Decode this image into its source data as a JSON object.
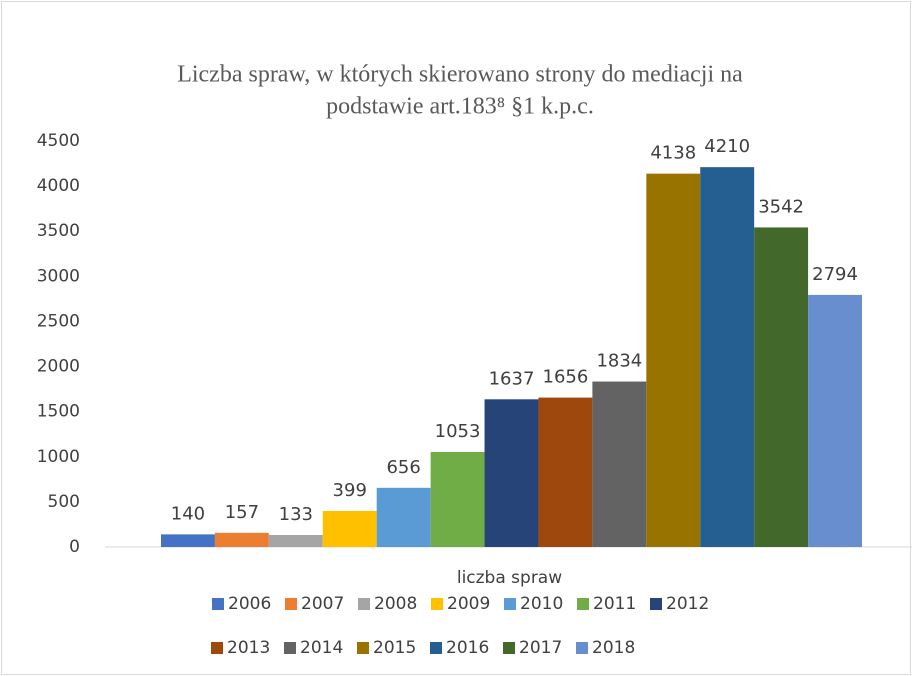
{
  "chart_data": {
    "type": "bar",
    "title": [
      "Liczba spraw, w których skierowano strony do mediacji na",
      "podstawie art.183⁸ §1 k.p.c."
    ],
    "categories": [
      "liczba spraw"
    ],
    "series": [
      {
        "name": "2006",
        "color": "#4472c4",
        "values": [
          140
        ]
      },
      {
        "name": "2007",
        "color": "#ed7d31",
        "values": [
          157
        ]
      },
      {
        "name": "2008",
        "color": "#a5a5a5",
        "values": [
          133
        ]
      },
      {
        "name": "2009",
        "color": "#ffc000",
        "values": [
          399
        ]
      },
      {
        "name": "2010",
        "color": "#5b9bd5",
        "values": [
          656
        ]
      },
      {
        "name": "2011",
        "color": "#70ad47",
        "values": [
          1053
        ]
      },
      {
        "name": "2012",
        "color": "#264478",
        "values": [
          1637
        ]
      },
      {
        "name": "2013",
        "color": "#9e480e",
        "values": [
          1656
        ]
      },
      {
        "name": "2014",
        "color": "#636363",
        "values": [
          1834
        ]
      },
      {
        "name": "2015",
        "color": "#997300",
        "values": [
          4138
        ]
      },
      {
        "name": "2016",
        "color": "#255e91",
        "values": [
          4210
        ]
      },
      {
        "name": "2017",
        "color": "#43682b",
        "values": [
          3542
        ]
      },
      {
        "name": "2018",
        "color": "#698ed0",
        "values": [
          2794
        ]
      }
    ],
    "ylim": [
      0,
      4500
    ],
    "yticks": [
      0,
      500,
      1000,
      1500,
      2000,
      2500,
      3000,
      3500,
      4000,
      4500
    ],
    "grid": false,
    "legend": "bottom"
  }
}
